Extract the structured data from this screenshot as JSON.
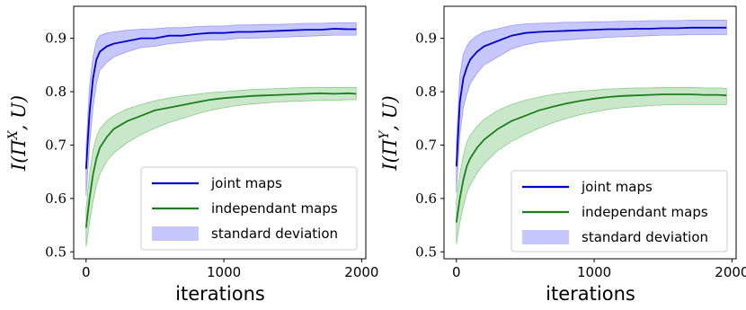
{
  "chart_data": [
    {
      "type": "line",
      "ylabel_main": "I(Π",
      "ylabel_sup": "X",
      "ylabel_tail": ", U)",
      "xlabel": "iterations",
      "xlim": [
        -90,
        2030
      ],
      "ylim": [
        0.487,
        0.96
      ],
      "xticks": [
        0,
        1000,
        2000
      ],
      "yticks": [
        0.5,
        0.6,
        0.7,
        0.8,
        0.9
      ],
      "ytick_labels": [
        "0.5",
        "0.6",
        "0.7",
        "0.8",
        "0.9"
      ],
      "xtick_labels": [
        "0",
        "1000",
        "2000"
      ],
      "legend": {
        "placement": "lower-right",
        "entries": [
          "joint maps",
          "independant maps",
          "standard deviation"
        ]
      },
      "colors": {
        "joint": "#0000cc",
        "independant": "#1a7f1a",
        "joint_band": "#9999ff",
        "indep_band": "#88cc88"
      },
      "series": [
        {
          "name": "joint maps",
          "x": [
            0,
            25,
            50,
            75,
            100,
            150,
            200,
            300,
            400,
            500,
            600,
            700,
            800,
            900,
            1000,
            1100,
            1200,
            1300,
            1400,
            1500,
            1600,
            1700,
            1800,
            1900,
            1960
          ],
          "values": [
            0.655,
            0.76,
            0.825,
            0.86,
            0.875,
            0.885,
            0.89,
            0.895,
            0.9,
            0.9,
            0.905,
            0.905,
            0.908,
            0.91,
            0.91,
            0.912,
            0.912,
            0.913,
            0.914,
            0.915,
            0.916,
            0.916,
            0.918,
            0.917,
            0.917
          ],
          "std_low": [
            0.605,
            0.7,
            0.77,
            0.815,
            0.84,
            0.855,
            0.865,
            0.875,
            0.883,
            0.885,
            0.89,
            0.892,
            0.895,
            0.897,
            0.897,
            0.9,
            0.9,
            0.901,
            0.902,
            0.903,
            0.904,
            0.905,
            0.906,
            0.906,
            0.906
          ],
          "std_high": [
            0.695,
            0.81,
            0.865,
            0.895,
            0.905,
            0.91,
            0.912,
            0.915,
            0.917,
            0.918,
            0.92,
            0.92,
            0.922,
            0.923,
            0.923,
            0.925,
            0.925,
            0.926,
            0.926,
            0.927,
            0.928,
            0.928,
            0.929,
            0.929,
            0.929
          ]
        },
        {
          "name": "independant maps",
          "x": [
            0,
            25,
            50,
            75,
            100,
            150,
            200,
            300,
            400,
            500,
            600,
            700,
            800,
            900,
            1000,
            1100,
            1200,
            1300,
            1400,
            1500,
            1600,
            1700,
            1800,
            1900,
            1960
          ],
          "values": [
            0.545,
            0.6,
            0.645,
            0.675,
            0.695,
            0.715,
            0.73,
            0.745,
            0.755,
            0.765,
            0.77,
            0.775,
            0.78,
            0.785,
            0.788,
            0.79,
            0.792,
            0.793,
            0.794,
            0.795,
            0.796,
            0.797,
            0.796,
            0.797,
            0.796
          ],
          "std_low": [
            0.51,
            0.555,
            0.595,
            0.625,
            0.645,
            0.67,
            0.685,
            0.705,
            0.72,
            0.732,
            0.742,
            0.75,
            0.758,
            0.765,
            0.77,
            0.774,
            0.777,
            0.779,
            0.781,
            0.782,
            0.783,
            0.784,
            0.784,
            0.785,
            0.785
          ],
          "std_high": [
            0.58,
            0.645,
            0.69,
            0.715,
            0.73,
            0.745,
            0.755,
            0.768,
            0.776,
            0.783,
            0.788,
            0.792,
            0.795,
            0.798,
            0.8,
            0.802,
            0.804,
            0.805,
            0.806,
            0.807,
            0.808,
            0.808,
            0.808,
            0.808,
            0.808
          ]
        }
      ]
    },
    {
      "type": "line",
      "ylabel_main": "I(Π",
      "ylabel_sup": "Y",
      "ylabel_tail": ", U)",
      "xlabel": "iterations",
      "xlim": [
        -90,
        2030
      ],
      "ylim": [
        0.487,
        0.96
      ],
      "xticks": [
        0,
        1000,
        2000
      ],
      "yticks": [
        0.5,
        0.6,
        0.7,
        0.8,
        0.9
      ],
      "ytick_labels": [
        "0.5",
        "0.6",
        "0.7",
        "0.8",
        "0.9"
      ],
      "xtick_labels": [
        "0",
        "1000",
        "2000"
      ],
      "legend": {
        "placement": "lower-right",
        "entries": [
          "joint maps",
          "independant maps",
          "standard deviation"
        ]
      },
      "colors": {
        "joint": "#0000cc",
        "independant": "#1a7f1a",
        "joint_band": "#9999ff",
        "indep_band": "#88cc88"
      },
      "series": [
        {
          "name": "joint maps",
          "x": [
            0,
            25,
            50,
            75,
            100,
            150,
            200,
            300,
            400,
            500,
            600,
            700,
            800,
            900,
            1000,
            1100,
            1200,
            1300,
            1400,
            1500,
            1600,
            1700,
            1800,
            1900,
            1960
          ],
          "values": [
            0.66,
            0.78,
            0.825,
            0.845,
            0.86,
            0.875,
            0.885,
            0.895,
            0.905,
            0.91,
            0.912,
            0.913,
            0.914,
            0.915,
            0.916,
            0.917,
            0.917,
            0.918,
            0.918,
            0.919,
            0.919,
            0.92,
            0.92,
            0.92,
            0.92
          ],
          "std_low": [
            0.61,
            0.72,
            0.77,
            0.795,
            0.815,
            0.835,
            0.85,
            0.865,
            0.88,
            0.888,
            0.893,
            0.895,
            0.897,
            0.899,
            0.9,
            0.902,
            0.903,
            0.904,
            0.905,
            0.906,
            0.906,
            0.907,
            0.907,
            0.907,
            0.907
          ],
          "std_high": [
            0.705,
            0.83,
            0.87,
            0.885,
            0.895,
            0.905,
            0.912,
            0.918,
            0.924,
            0.927,
            0.928,
            0.929,
            0.93,
            0.93,
            0.931,
            0.931,
            0.932,
            0.932,
            0.933,
            0.933,
            0.933,
            0.934,
            0.934,
            0.934,
            0.934
          ]
        },
        {
          "name": "independant maps",
          "x": [
            0,
            25,
            50,
            75,
            100,
            150,
            200,
            300,
            400,
            500,
            600,
            700,
            800,
            900,
            1000,
            1100,
            1200,
            1300,
            1400,
            1500,
            1600,
            1700,
            1800,
            1900,
            1960
          ],
          "values": [
            0.555,
            0.6,
            0.635,
            0.66,
            0.675,
            0.695,
            0.71,
            0.73,
            0.745,
            0.755,
            0.765,
            0.772,
            0.778,
            0.783,
            0.787,
            0.79,
            0.792,
            0.793,
            0.794,
            0.795,
            0.795,
            0.795,
            0.794,
            0.794,
            0.793
          ],
          "std_low": [
            0.515,
            0.555,
            0.585,
            0.61,
            0.625,
            0.648,
            0.665,
            0.69,
            0.707,
            0.72,
            0.732,
            0.742,
            0.75,
            0.757,
            0.762,
            0.767,
            0.77,
            0.772,
            0.774,
            0.775,
            0.776,
            0.776,
            0.776,
            0.776,
            0.776
          ],
          "std_high": [
            0.595,
            0.645,
            0.68,
            0.705,
            0.718,
            0.735,
            0.748,
            0.765,
            0.776,
            0.784,
            0.79,
            0.795,
            0.798,
            0.801,
            0.803,
            0.805,
            0.806,
            0.807,
            0.807,
            0.808,
            0.808,
            0.808,
            0.807,
            0.807,
            0.806
          ]
        }
      ]
    }
  ]
}
